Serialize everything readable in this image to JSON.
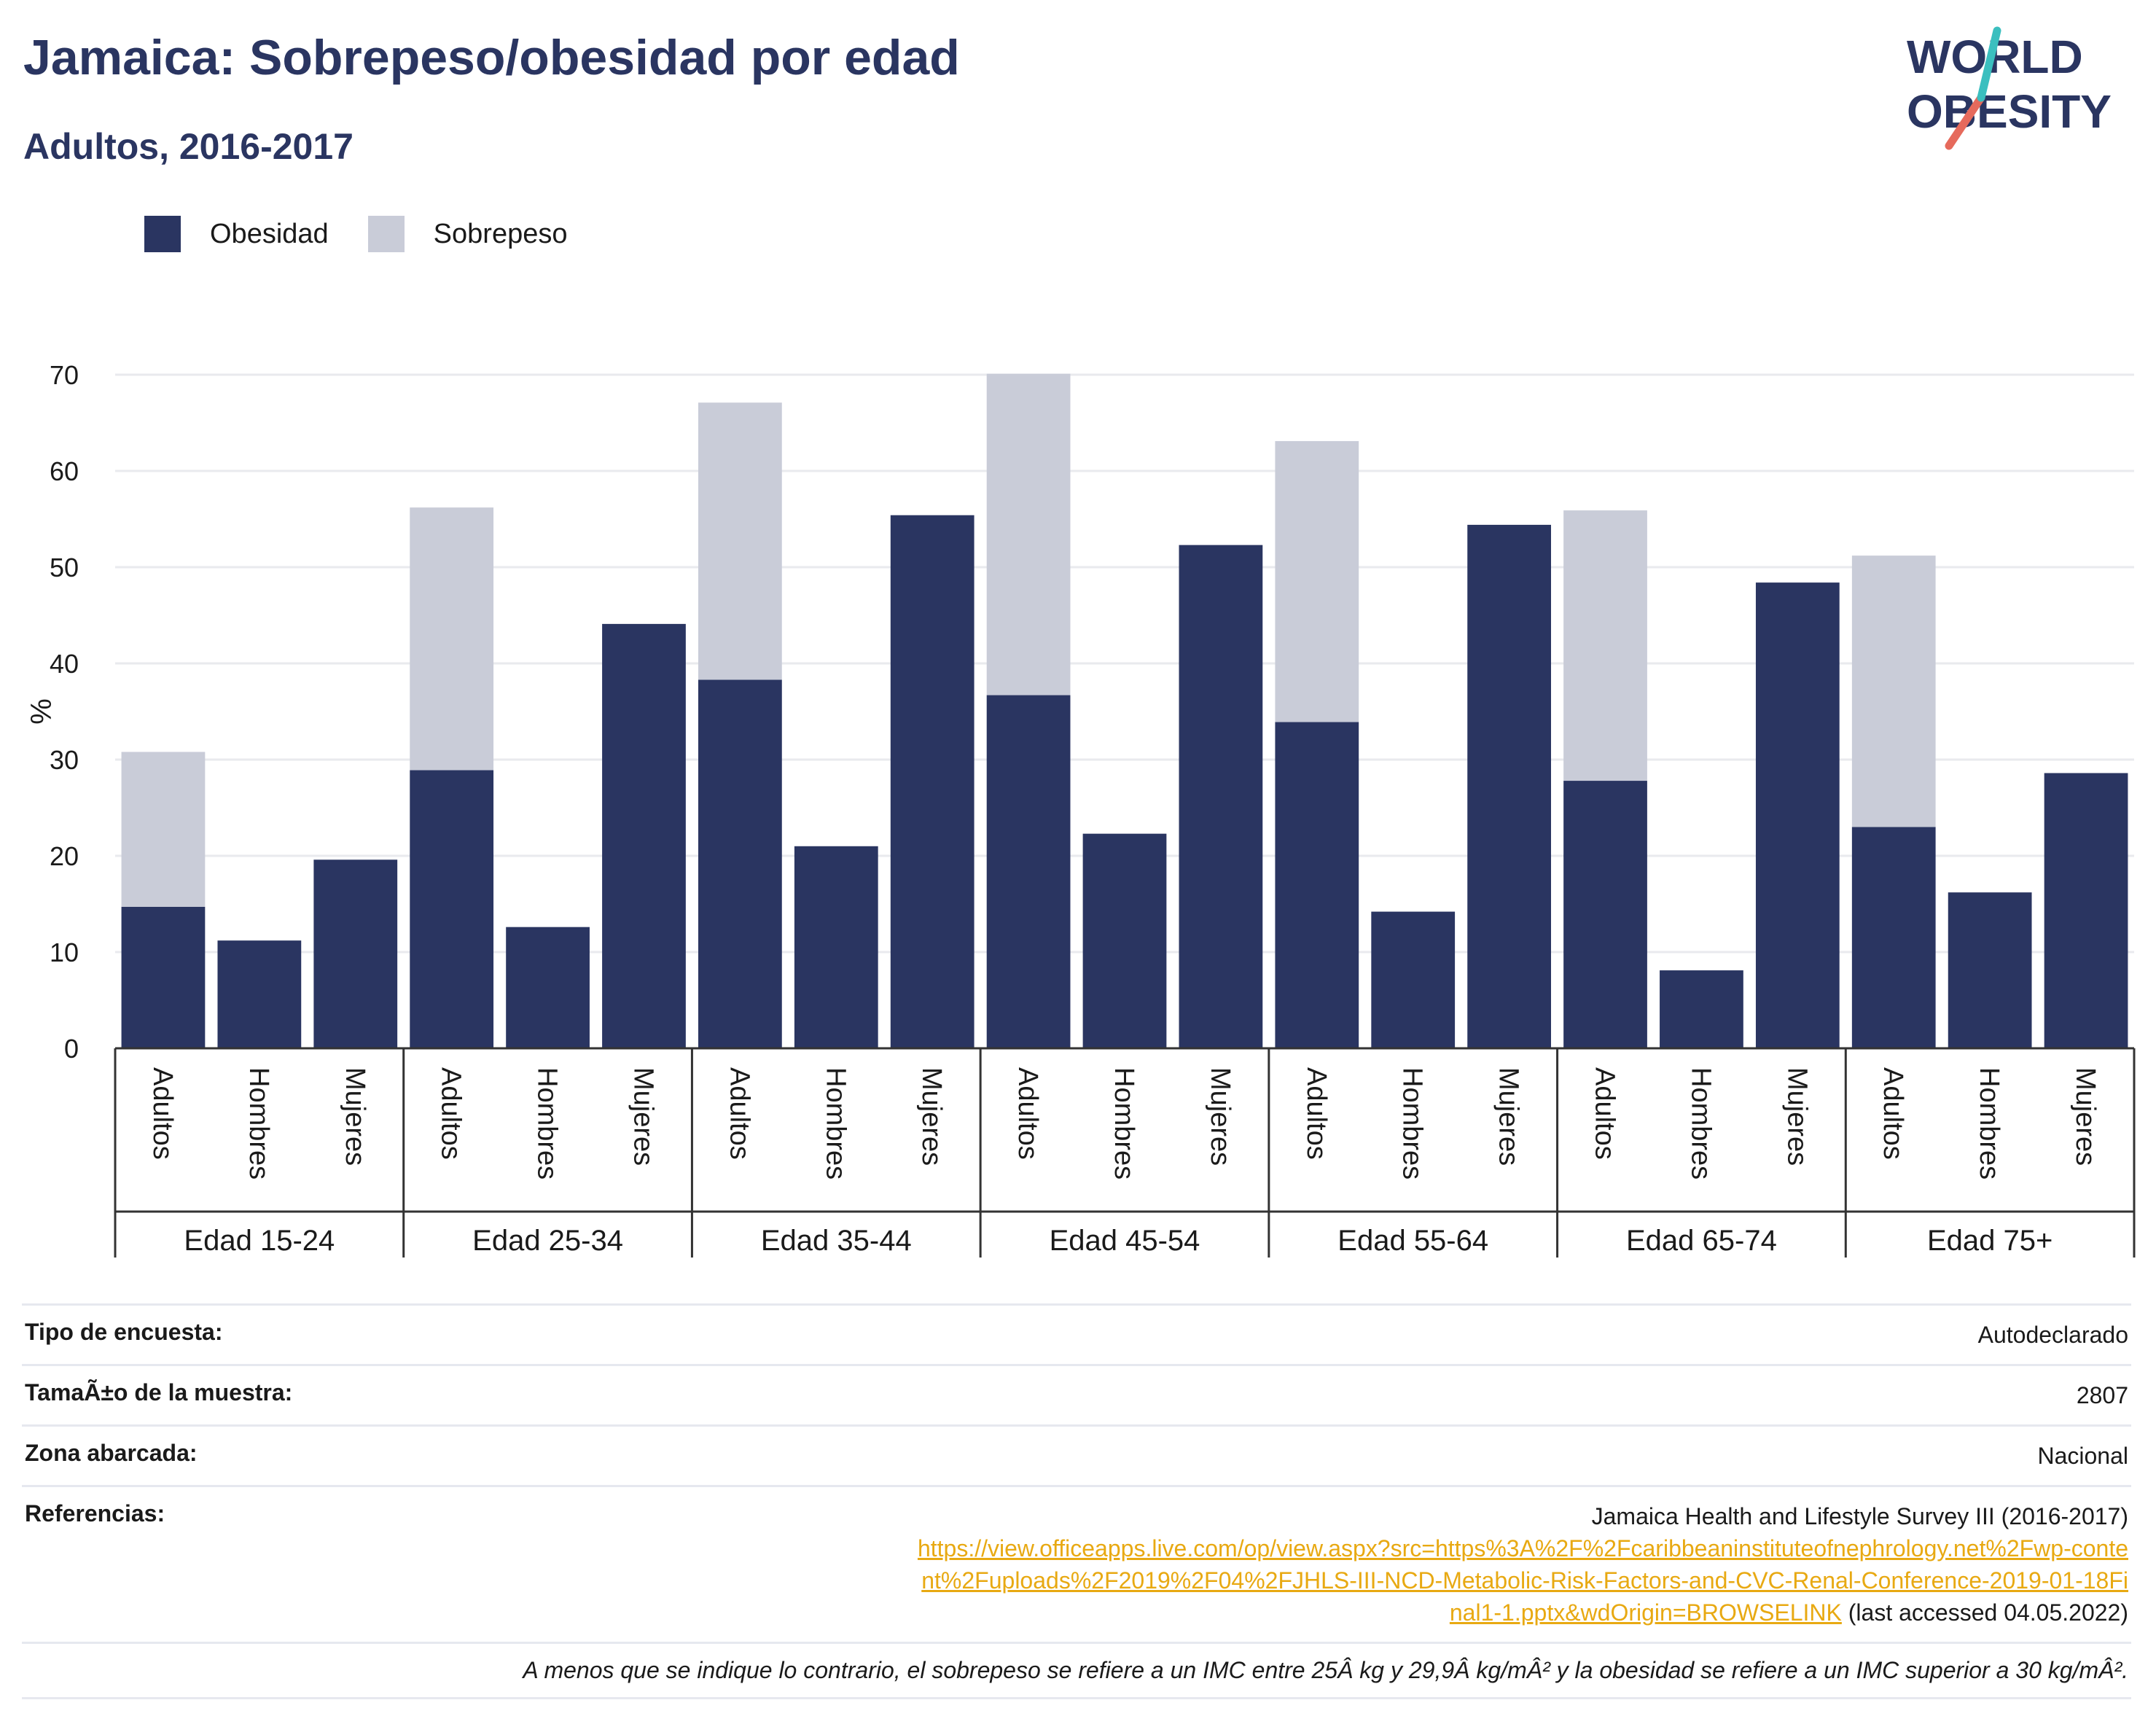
{
  "header": {
    "title": "Jamaica: Sobrepeso/obesidad por edad",
    "subtitle": "Adultos, 2016-2017"
  },
  "logo": {
    "line1": "WORLD",
    "line2": "OBESITY"
  },
  "legend": [
    {
      "label": "Obesidad",
      "color": "#2a3561"
    },
    {
      "label": "Sobrepeso",
      "color": "#c9ccd8"
    }
  ],
  "chart_data": {
    "type": "bar",
    "stacked": true,
    "ylabel": "%",
    "ylim": [
      0,
      70
    ],
    "yticks": [
      0,
      10,
      20,
      30,
      40,
      50,
      60,
      70
    ],
    "grid": true,
    "legend_position": "top-left",
    "groups": [
      "Edad 15-24",
      "Edad 25-34",
      "Edad 35-44",
      "Edad 45-54",
      "Edad 55-64",
      "Edad 65-74",
      "Edad 75+"
    ],
    "categories": [
      "Adultos",
      "Hombres",
      "Mujeres"
    ],
    "series": [
      {
        "name": "Obesidad",
        "color": "#2a3561",
        "values": [
          [
            14.7,
            11.2,
            19.6
          ],
          [
            28.9,
            12.6,
            44.1
          ],
          [
            38.3,
            21.0,
            55.4
          ],
          [
            36.7,
            22.3,
            52.3
          ],
          [
            33.9,
            14.2,
            54.4
          ],
          [
            27.8,
            8.1,
            48.4
          ],
          [
            23.0,
            16.2,
            28.6
          ]
        ]
      },
      {
        "name": "Sobrepeso",
        "color": "#c9ccd8",
        "values": [
          [
            16.1,
            0,
            0
          ],
          [
            27.3,
            0,
            0
          ],
          [
            28.8,
            0,
            0
          ],
          [
            33.4,
            0,
            0
          ],
          [
            29.2,
            0,
            0
          ],
          [
            28.1,
            0,
            0
          ],
          [
            28.2,
            0,
            0
          ]
        ]
      }
    ]
  },
  "info": {
    "survey_type_label": "Tipo de encuesta:",
    "survey_type_value": "Autodeclarado",
    "sample_label": "TamaÃ±o de la muestra:",
    "sample_value": "2807",
    "area_label": "Zona abarcada:",
    "area_value": "Nacional",
    "references_label": "Referencias:",
    "reference_title": "Jamaica Health and Lifestyle Survey III (2016-2017)",
    "reference_url": "https://view.officeapps.live.com/op/view.aspx?src=https%3A%2F%2Fcaribbeaninstituteofnephrology.net%2Fwp-content%2Fuploads%2F2019%2F04%2FJHLS-III-NCD-Metabolic-Risk-Factors-and-CVC-Renal-Conference-2019-01-18Final1-1.pptx&wdOrigin=BROWSELINK",
    "reference_accessed": "(last accessed 04.05.2022)",
    "footnote": "A menos que se indique lo contrario, el sobrepeso se refiere a un IMC entre 25Â kg y 29,9Â kg/mÂ² y la obesidad se refiere a un IMC superior a 30 kg/mÂ²."
  }
}
